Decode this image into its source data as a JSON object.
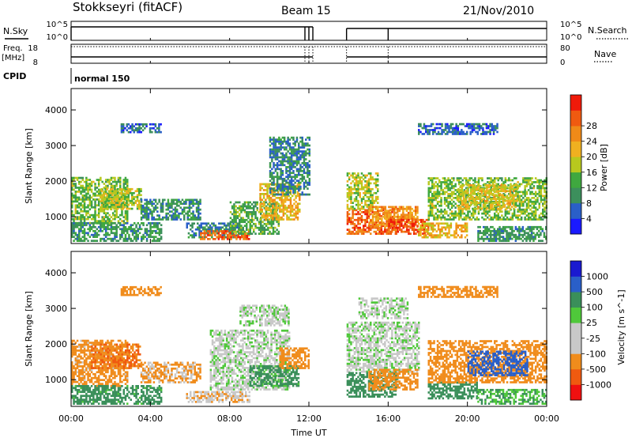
{
  "header": {
    "title": "Stokkseyri (fitACF)",
    "beam": "Beam 15",
    "date": "21/Nov/2010"
  },
  "top_panels": {
    "nsky_label": "N.Sky",
    "nsearch_label": "N.Search",
    "nsky_ticks": [
      "10^5",
      "10^0"
    ],
    "nsearch_ticks": [
      "10^5",
      "10^0"
    ],
    "freq_label_line1": "Freq.",
    "freq_label_line2": "[MHz]",
    "freq_ticks": [
      "18",
      "8"
    ],
    "nave_label": "Nave",
    "nave_ticks": [
      "80",
      "0"
    ],
    "cpid_label": "CPID",
    "cpid_value": "normal 150"
  },
  "x_axis": {
    "label": "Time UT",
    "ticks": [
      "00:00",
      "04:00",
      "08:00",
      "12:00",
      "16:00",
      "20:00",
      "00:00"
    ]
  },
  "colors": {
    "power_scale": [
      "#1a1aff",
      "#2a5fc8",
      "#3c8f5c",
      "#3fa83f",
      "#b8c81e",
      "#f0b020",
      "#f08a18",
      "#f05a10",
      "#f01a0a"
    ],
    "velocity_scale": [
      "#f01010",
      "#f05a10",
      "#f08c1c",
      "#c8c8c8",
      "#c8c8c8",
      "#4fc83a",
      "#3a8f5a",
      "#2a5fc8",
      "#1a1ad0"
    ],
    "gray": "#c8c8c8"
  },
  "chart_data": [
    {
      "type": "heatmap",
      "name": "power",
      "ylabel": "Slant Range [km]",
      "yticks": [
        "1000",
        "2000",
        "3000",
        "4000"
      ],
      "ylim": [
        250,
        4600
      ],
      "xlim_hours": [
        0,
        24
      ],
      "colorbar_label": "Power [dB]",
      "colorbar_ticks": [
        "4",
        "8",
        "12",
        "16",
        "20",
        "24",
        "28"
      ],
      "clim": [
        0,
        32
      ],
      "data_gap_hours": [
        12.2,
        13.9
      ],
      "regions": [
        {
          "t": [
            0.0,
            2.8
          ],
          "r": [
            800,
            2100
          ],
          "v": 14
        },
        {
          "t": [
            0.0,
            4.5
          ],
          "r": [
            300,
            800
          ],
          "v": 10
        },
        {
          "t": [
            1.5,
            3.5
          ],
          "r": [
            1200,
            1800
          ],
          "v": 16
        },
        {
          "t": [
            2.5,
            4.5
          ],
          "r": [
            3350,
            3600
          ],
          "v": 6
        },
        {
          "t": [
            3.5,
            6.5
          ],
          "r": [
            900,
            1500
          ],
          "v": 9
        },
        {
          "t": [
            5.8,
            8.5
          ],
          "r": [
            400,
            800
          ],
          "v": 8
        },
        {
          "t": [
            6.5,
            9.0
          ],
          "r": [
            350,
            600
          ],
          "v": 26
        },
        {
          "t": [
            8.0,
            10.5
          ],
          "r": [
            500,
            1400
          ],
          "v": 12
        },
        {
          "t": [
            9.5,
            11.5
          ],
          "r": [
            900,
            1900
          ],
          "v": 20
        },
        {
          "t": [
            10.0,
            12.0
          ],
          "r": [
            1600,
            3200
          ],
          "v": 8
        },
        {
          "t": [
            13.9,
            16.5
          ],
          "r": [
            500,
            1200
          ],
          "v": 26
        },
        {
          "t": [
            13.9,
            15.5
          ],
          "r": [
            1200,
            2200
          ],
          "v": 16
        },
        {
          "t": [
            15.0,
            17.5
          ],
          "r": [
            700,
            1300
          ],
          "v": 22
        },
        {
          "t": [
            16.0,
            18.0
          ],
          "r": [
            500,
            900
          ],
          "v": 28
        },
        {
          "t": [
            17.5,
            20.0
          ],
          "r": [
            400,
            800
          ],
          "v": 20
        },
        {
          "t": [
            18.0,
            24.0
          ],
          "r": [
            900,
            2100
          ],
          "v": 14
        },
        {
          "t": [
            19.5,
            22.5
          ],
          "r": [
            1200,
            1900
          ],
          "v": 18
        },
        {
          "t": [
            17.5,
            21.5
          ],
          "r": [
            3300,
            3600
          ],
          "v": 6
        },
        {
          "t": [
            20.5,
            24.0
          ],
          "r": [
            300,
            700
          ],
          "v": 10
        }
      ]
    },
    {
      "type": "heatmap",
      "name": "velocity",
      "ylabel": "Slant Range [km]",
      "yticks": [
        "1000",
        "2000",
        "3000",
        "4000"
      ],
      "ylim": [
        250,
        4600
      ],
      "xlim_hours": [
        0,
        24
      ],
      "colorbar_label": "Velocity [m s^-1]",
      "colorbar_ticks": [
        "-1000",
        "-500",
        "-100",
        "-25",
        "25",
        "100",
        "500",
        "1000"
      ],
      "data_gap_hours": [
        12.2,
        13.9
      ],
      "regions": [
        {
          "t": [
            0.0,
            2.8
          ],
          "r": [
            800,
            2100
          ],
          "v": -150
        },
        {
          "t": [
            1.0,
            3.5
          ],
          "r": [
            1300,
            2000
          ],
          "v": -500
        },
        {
          "t": [
            0.0,
            4.5
          ],
          "r": [
            300,
            800
          ],
          "v": 150
        },
        {
          "t": [
            2.5,
            4.5
          ],
          "r": [
            3350,
            3600
          ],
          "v": -400
        },
        {
          "t": [
            3.5,
            6.5
          ],
          "r": [
            900,
            1500
          ],
          "v": -120
        },
        {
          "t": [
            5.8,
            9.0
          ],
          "r": [
            350,
            650
          ],
          "v": -80
        },
        {
          "t": [
            7.0,
            11.0
          ],
          "r": [
            700,
            2400
          ],
          "v": 0
        },
        {
          "t": [
            8.5,
            11.0
          ],
          "r": [
            2500,
            3100
          ],
          "v": 0
        },
        {
          "t": [
            9.0,
            11.5
          ],
          "r": [
            800,
            1400
          ],
          "v": 150
        },
        {
          "t": [
            10.5,
            12.0
          ],
          "r": [
            1300,
            1900
          ],
          "v": -300
        },
        {
          "t": [
            13.9,
            17.5
          ],
          "r": [
            1200,
            2600
          ],
          "v": 0
        },
        {
          "t": [
            14.5,
            17.0
          ],
          "r": [
            2700,
            3300
          ],
          "v": 0
        },
        {
          "t": [
            13.9,
            16.5
          ],
          "r": [
            500,
            1200
          ],
          "v": 200
        },
        {
          "t": [
            15.0,
            17.5
          ],
          "r": [
            700,
            1300
          ],
          "v": -200
        },
        {
          "t": [
            18.0,
            20.5
          ],
          "r": [
            450,
            900
          ],
          "v": 300
        },
        {
          "t": [
            18.0,
            24.0
          ],
          "r": [
            900,
            2100
          ],
          "v": -300
        },
        {
          "t": [
            20.0,
            23.0
          ],
          "r": [
            1100,
            1800
          ],
          "v": 600
        },
        {
          "t": [
            17.5,
            21.5
          ],
          "r": [
            3300,
            3600
          ],
          "v": -400
        },
        {
          "t": [
            20.5,
            24.0
          ],
          "r": [
            300,
            700
          ],
          "v": 100
        }
      ]
    }
  ]
}
